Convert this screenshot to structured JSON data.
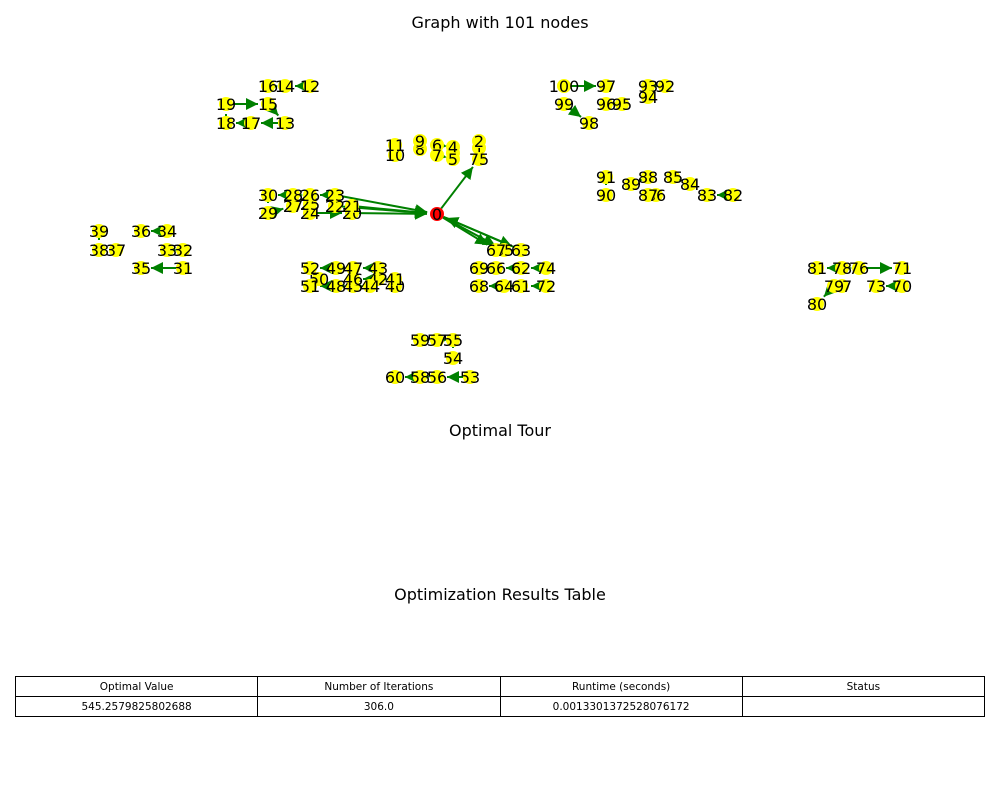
{
  "titles": {
    "graph": "Graph with 101 nodes",
    "tour": "Optimal Tour",
    "table": "Optimization Results Table"
  },
  "colors": {
    "edge": "#008000",
    "node": "#ffff00",
    "depot": "#ff0000",
    "text": "#000000"
  },
  "graph": {
    "nodes": [
      "0",
      "1",
      "2",
      "3",
      "4",
      "5",
      "6",
      "7",
      "8",
      "9",
      "10",
      "11",
      "12",
      "13",
      "14",
      "15",
      "16",
      "17",
      "18",
      "19",
      "20",
      "21",
      "22",
      "23",
      "24",
      "25",
      "26",
      "27",
      "28",
      "29",
      "30",
      "31",
      "32",
      "33",
      "34",
      "35",
      "36",
      "37",
      "38",
      "39",
      "40",
      "41",
      "42",
      "43",
      "44",
      "45",
      "46",
      "47",
      "48",
      "49",
      "50",
      "51",
      "52",
      "53",
      "54",
      "55",
      "56",
      "57",
      "58",
      "59",
      "60",
      "61",
      "62",
      "63",
      "64",
      "65",
      "66",
      "67",
      "68",
      "69",
      "70",
      "71",
      "72",
      "73",
      "74",
      "75",
      "76",
      "77",
      "78",
      "79",
      "80",
      "81",
      "82",
      "83",
      "84",
      "85",
      "86",
      "87",
      "88",
      "89",
      "90",
      "91",
      "92",
      "93",
      "94",
      "95",
      "96",
      "97",
      "98",
      "99",
      "100"
    ],
    "depot": "0",
    "edges": [
      [
        "20",
        "0"
      ],
      [
        "21",
        "0"
      ],
      [
        "22",
        "0"
      ],
      [
        "23",
        "0"
      ],
      [
        "0",
        "75"
      ],
      [
        "75",
        "1"
      ],
      [
        "1",
        "2"
      ],
      [
        "3",
        "4"
      ],
      [
        "4",
        "6"
      ],
      [
        "5",
        "7"
      ],
      [
        "0",
        "63"
      ],
      [
        "0",
        "65"
      ],
      [
        "0",
        "67"
      ],
      [
        "63",
        "0"
      ],
      [
        "12",
        "14"
      ],
      [
        "14",
        "16"
      ],
      [
        "19",
        "15"
      ],
      [
        "15",
        "13"
      ],
      [
        "13",
        "17"
      ],
      [
        "17",
        "18"
      ],
      [
        "18",
        "19"
      ],
      [
        "23",
        "26"
      ],
      [
        "26",
        "28"
      ],
      [
        "28",
        "30"
      ],
      [
        "30",
        "29"
      ],
      [
        "29",
        "27"
      ],
      [
        "27",
        "25"
      ],
      [
        "25",
        "24"
      ],
      [
        "24",
        "20"
      ],
      [
        "22",
        "21"
      ],
      [
        "34",
        "36"
      ],
      [
        "39",
        "38"
      ],
      [
        "38",
        "37"
      ],
      [
        "32",
        "33"
      ],
      [
        "31",
        "35"
      ],
      [
        "47",
        "49"
      ],
      [
        "49",
        "52"
      ],
      [
        "43",
        "47"
      ],
      [
        "44",
        "45"
      ],
      [
        "45",
        "48"
      ],
      [
        "48",
        "51"
      ],
      [
        "42",
        "46"
      ],
      [
        "41",
        "42"
      ],
      [
        "40",
        "41"
      ],
      [
        "50",
        "52"
      ],
      [
        "55",
        "57"
      ],
      [
        "57",
        "59"
      ],
      [
        "55",
        "54"
      ],
      [
        "53",
        "56"
      ],
      [
        "56",
        "58"
      ],
      [
        "58",
        "60"
      ],
      [
        "74",
        "62"
      ],
      [
        "62",
        "66"
      ],
      [
        "66",
        "69"
      ],
      [
        "72",
        "61"
      ],
      [
        "61",
        "64"
      ],
      [
        "64",
        "68"
      ],
      [
        "100",
        "97"
      ],
      [
        "92",
        "93"
      ],
      [
        "93",
        "94"
      ],
      [
        "96",
        "95"
      ],
      [
        "99",
        "98"
      ],
      [
        "91",
        "90"
      ],
      [
        "88",
        "89"
      ],
      [
        "85",
        "84"
      ],
      [
        "82",
        "83"
      ],
      [
        "86",
        "87"
      ],
      [
        "78",
        "81"
      ],
      [
        "76",
        "71"
      ],
      [
        "76",
        "78"
      ],
      [
        "77",
        "79"
      ],
      [
        "79",
        "80"
      ],
      [
        "70",
        "73"
      ]
    ]
  },
  "table": {
    "headers": [
      "Optimal Value",
      "Number of Iterations",
      "Runtime (seconds)",
      "Status"
    ],
    "row": [
      "545.2579825802688",
      "306.0",
      "0.0013301372528076172",
      ""
    ]
  }
}
